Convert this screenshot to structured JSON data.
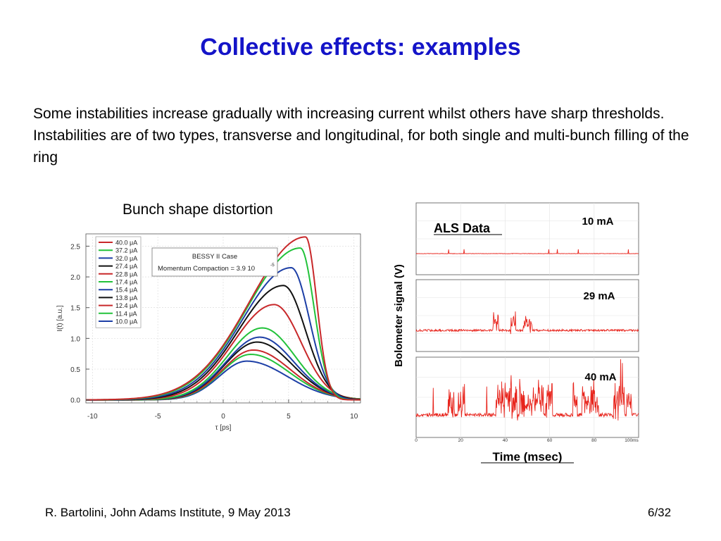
{
  "slide": {
    "title": "Collective effects: examples",
    "body": "Some instabilities increase gradually with increasing current whilst others have sharp thresholds. Instabilities are of two types, transverse and longitudinal, for both single and multi-bunch filling of the ring",
    "left_caption": "Bunch shape distortion",
    "footer_left": "R. Bartolini, John Adams Institute, 9 May 2013",
    "page_number": "6/32"
  },
  "colors": {
    "title": "#1414c8",
    "red": "#c8282a",
    "green": "#22c23a",
    "blue": "#1d3fa6",
    "black": "#111111",
    "als_trace": "#e8241c"
  },
  "chart_data": [
    {
      "type": "line",
      "title": "",
      "xlabel": "τ [ps]",
      "ylabel": "I(t) [a.u.]",
      "xlim": [
        -10.5,
        10.5
      ],
      "ylim": [
        -0.05,
        2.7
      ],
      "x_ticks": [
        "-10",
        "-5",
        "0",
        "5",
        "10"
      ],
      "y_ticks": [
        "0.0",
        "0.5",
        "1.0",
        "1.5",
        "2.0",
        "2.5"
      ],
      "annotation_box": {
        "line1": "BESSY II Case",
        "line2": "Momentum Compaction = 3.9 10",
        "exponent": "-5"
      },
      "series": [
        {
          "name": "40.0 μA",
          "color": "red",
          "peak": 2.65,
          "peak_x": 6.3
        },
        {
          "name": "37.2 μA",
          "color": "green",
          "peak": 2.47,
          "peak_x": 5.9
        },
        {
          "name": "32.0 μA",
          "color": "blue",
          "peak": 2.15,
          "peak_x": 5.2
        },
        {
          "name": "27.4 μA",
          "color": "black",
          "peak": 1.86,
          "peak_x": 4.6
        },
        {
          "name": "22.8 μA",
          "color": "red",
          "peak": 1.55,
          "peak_x": 3.9
        },
        {
          "name": "17.4 μA",
          "color": "green",
          "peak": 1.17,
          "peak_x": 3.0
        },
        {
          "name": "15.4 μA",
          "color": "blue",
          "peak": 1.02,
          "peak_x": 2.8
        },
        {
          "name": "13.8 μA",
          "color": "black",
          "peak": 0.94,
          "peak_x": 2.6
        },
        {
          "name": "12.4 μA",
          "color": "red",
          "peak": 0.81,
          "peak_x": 2.3
        },
        {
          "name": "11.4 μA",
          "color": "green",
          "peak": 0.74,
          "peak_x": 2.1
        },
        {
          "name": "10.0 μA",
          "color": "blue",
          "peak": 0.63,
          "peak_x": 1.8
        }
      ]
    },
    {
      "type": "line",
      "title": "",
      "panel_title": "ALS Data",
      "xlabel": "Time (msec)",
      "ylabel": "Bolometer signal (V)",
      "xlim": [
        0,
        100
      ],
      "x_ticks": [
        "0",
        "20",
        "40",
        "60",
        "80",
        "100ms"
      ],
      "series": [
        {
          "name": "10 mA",
          "activity": 0.08
        },
        {
          "name": "29 mA",
          "activity": 0.55
        },
        {
          "name": "40 mA",
          "activity": 1.0
        }
      ]
    }
  ]
}
